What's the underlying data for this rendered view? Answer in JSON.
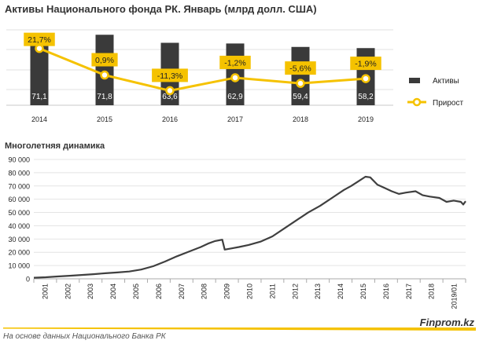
{
  "title": "Активы Национального фонда РК. Январь (млрд долл. США)",
  "subtitle": "Многолетняя динамика",
  "footer": {
    "source": "На основе данных Национального  Банка РК",
    "brand": "Finprom.kz"
  },
  "colors": {
    "bar": "#3a3a3a",
    "line": "#f5c200",
    "label_fill": "#f5c200",
    "dynamics": "#3f3f3f",
    "footer_line": "#f5c200"
  },
  "chart_data": [
    {
      "type": "bar+line",
      "title": "Активы Национального фонда РК. Январь (млрд долл. США)",
      "categories": [
        "2014",
        "2015",
        "2016",
        "2017",
        "2018",
        "2019"
      ],
      "series": [
        {
          "name": "Активы",
          "kind": "bar",
          "values": [
            71.1,
            71.8,
            63.6,
            62.9,
            59.4,
            58.2
          ],
          "labels": [
            "71,1",
            "71,8",
            "63,6",
            "62,9",
            "59,4",
            "58,2"
          ]
        },
        {
          "name": "Прирост",
          "kind": "line",
          "values": [
            21.7,
            0.9,
            -11.3,
            -1.2,
            -5.6,
            -1.9
          ],
          "labels": [
            "21,7%",
            "0,9%",
            "-11,3%",
            "-1,2%",
            "-5,6%",
            "-1,9%"
          ]
        }
      ],
      "legend": [
        "Активы",
        "Прирост"
      ],
      "legend_position": "right"
    },
    {
      "type": "line",
      "title": "Многолетняя динамика",
      "ylim": [
        0,
        90000
      ],
      "yticks": [
        0,
        10000,
        20000,
        30000,
        40000,
        50000,
        60000,
        70000,
        80000,
        90000
      ],
      "ytick_labels": [
        "0",
        "10 000",
        "20 000",
        "30 000",
        "40 000",
        "50 000",
        "60 000",
        "70 000",
        "80 000",
        "90 000"
      ],
      "xtick_labels": [
        "2001",
        "2002",
        "2003",
        "2004",
        "2005",
        "2006",
        "2007",
        "2008",
        "2009",
        "2010",
        "2011",
        "2012",
        "2013",
        "2014",
        "2015",
        "2016",
        "2017",
        "2018",
        "2019/01"
      ],
      "xlim": [
        2001,
        2019.1
      ],
      "x": [
        2001.0,
        2001.5,
        2002.0,
        2002.5,
        2003.0,
        2003.5,
        2004.0,
        2004.5,
        2005.0,
        2005.5,
        2006.0,
        2006.5,
        2007.0,
        2007.5,
        2008.0,
        2008.3,
        2008.6,
        2008.9,
        2009.0,
        2009.3,
        2009.6,
        2010.0,
        2010.5,
        2011.0,
        2011.5,
        2012.0,
        2012.5,
        2013.0,
        2013.5,
        2014.0,
        2014.3,
        2014.6,
        2014.9,
        2015.1,
        2015.4,
        2015.7,
        2016.0,
        2016.3,
        2016.6,
        2017.0,
        2017.3,
        2017.6,
        2018.0,
        2018.3,
        2018.6,
        2018.9,
        2019.0,
        2019.1
      ],
      "y": [
        800,
        1200,
        1800,
        2300,
        2900,
        3500,
        4200,
        4800,
        5500,
        7000,
        9500,
        13000,
        17000,
        20500,
        24000,
        26500,
        28500,
        29500,
        22000,
        23000,
        24000,
        25500,
        28000,
        32000,
        38000,
        44000,
        50000,
        55000,
        61000,
        67000,
        70000,
        73500,
        77000,
        76500,
        71000,
        68500,
        66000,
        64000,
        65000,
        66000,
        63000,
        62000,
        61000,
        58000,
        59000,
        58000,
        56000,
        58500
      ]
    }
  ]
}
